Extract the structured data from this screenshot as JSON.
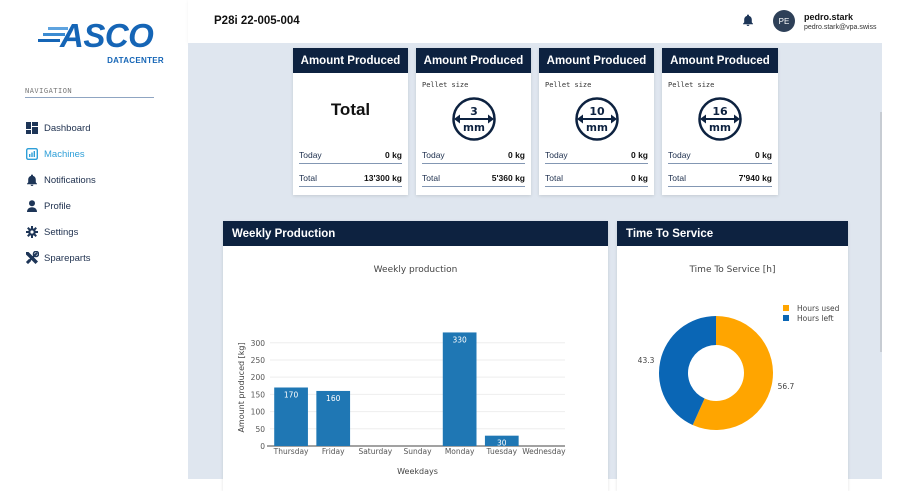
{
  "sidebar": {
    "logo": {
      "brand": "ASCO",
      "sub": "DATACENTER"
    },
    "nav_label": "NAVIGATION",
    "items": [
      {
        "label": "Dashboard",
        "icon": "dashboard-icon"
      },
      {
        "label": "Machines",
        "icon": "chart-box-icon",
        "active": true
      },
      {
        "label": "Notifications",
        "icon": "bell-icon"
      },
      {
        "label": "Profile",
        "icon": "user-icon"
      },
      {
        "label": "Settings",
        "icon": "gear-icon"
      },
      {
        "label": "Spareparts",
        "icon": "tools-icon"
      }
    ]
  },
  "header": {
    "title": "P28i 22-005-004",
    "user": {
      "initials": "PE",
      "name": "pedro.stark",
      "email": "pedro.stark@vpa.swiss"
    }
  },
  "amount_cards": [
    {
      "title": "Amount Produced",
      "kind": "total",
      "big_label": "Total",
      "today_label": "Today",
      "today": "0 kg",
      "total_label": "Total",
      "total": "13'300 kg"
    },
    {
      "title": "Amount Produced",
      "kind": "pellet",
      "pellet_label": "Pellet size",
      "size": "3",
      "unit": "mm",
      "today_label": "Today",
      "today": "0 kg",
      "total_label": "Total",
      "total": "5'360 kg"
    },
    {
      "title": "Amount Produced",
      "kind": "pellet",
      "pellet_label": "Pellet size",
      "size": "10",
      "unit": "mm",
      "today_label": "Today",
      "today": "0 kg",
      "total_label": "Total",
      "total": "0 kg"
    },
    {
      "title": "Amount Produced",
      "kind": "pellet",
      "pellet_label": "Pellet size",
      "size": "16",
      "unit": "mm",
      "today_label": "Today",
      "today": "0 kg",
      "total_label": "Total",
      "total": "7'940 kg"
    }
  ],
  "weekly": {
    "card_title": "Weekly Production"
  },
  "service": {
    "card_title": "Time To Service"
  },
  "colors": {
    "navy": "#0d2240",
    "bar": "#1f77b4",
    "used": "#ffa500",
    "left": "#0a66b5",
    "active_nav": "#2e9fd8"
  },
  "chart_data": [
    {
      "type": "bar",
      "title": "Weekly production",
      "xlabel": "Weekdays",
      "ylabel": "Amount produced [kg]",
      "categories": [
        "Thursday",
        "Friday",
        "Saturday",
        "Sunday",
        "Monday",
        "Tuesday",
        "Wednesday"
      ],
      "values": [
        170,
        160,
        0,
        0,
        330,
        30,
        0
      ],
      "labels": [
        "170",
        "160",
        "",
        "",
        "330",
        "30",
        ""
      ],
      "yticks": [
        0,
        50,
        100,
        150,
        200,
        250,
        300
      ],
      "ylim": [
        0,
        340
      ],
      "grid": true
    },
    {
      "type": "pie",
      "title": "Time To Service [h]",
      "hole": true,
      "slices": [
        {
          "name": "Hours used",
          "value": 56.7,
          "color": "#ffa500"
        },
        {
          "name": "Hours left",
          "value": 43.3,
          "color": "#0a66b5"
        }
      ],
      "legend": "top-right"
    }
  ]
}
